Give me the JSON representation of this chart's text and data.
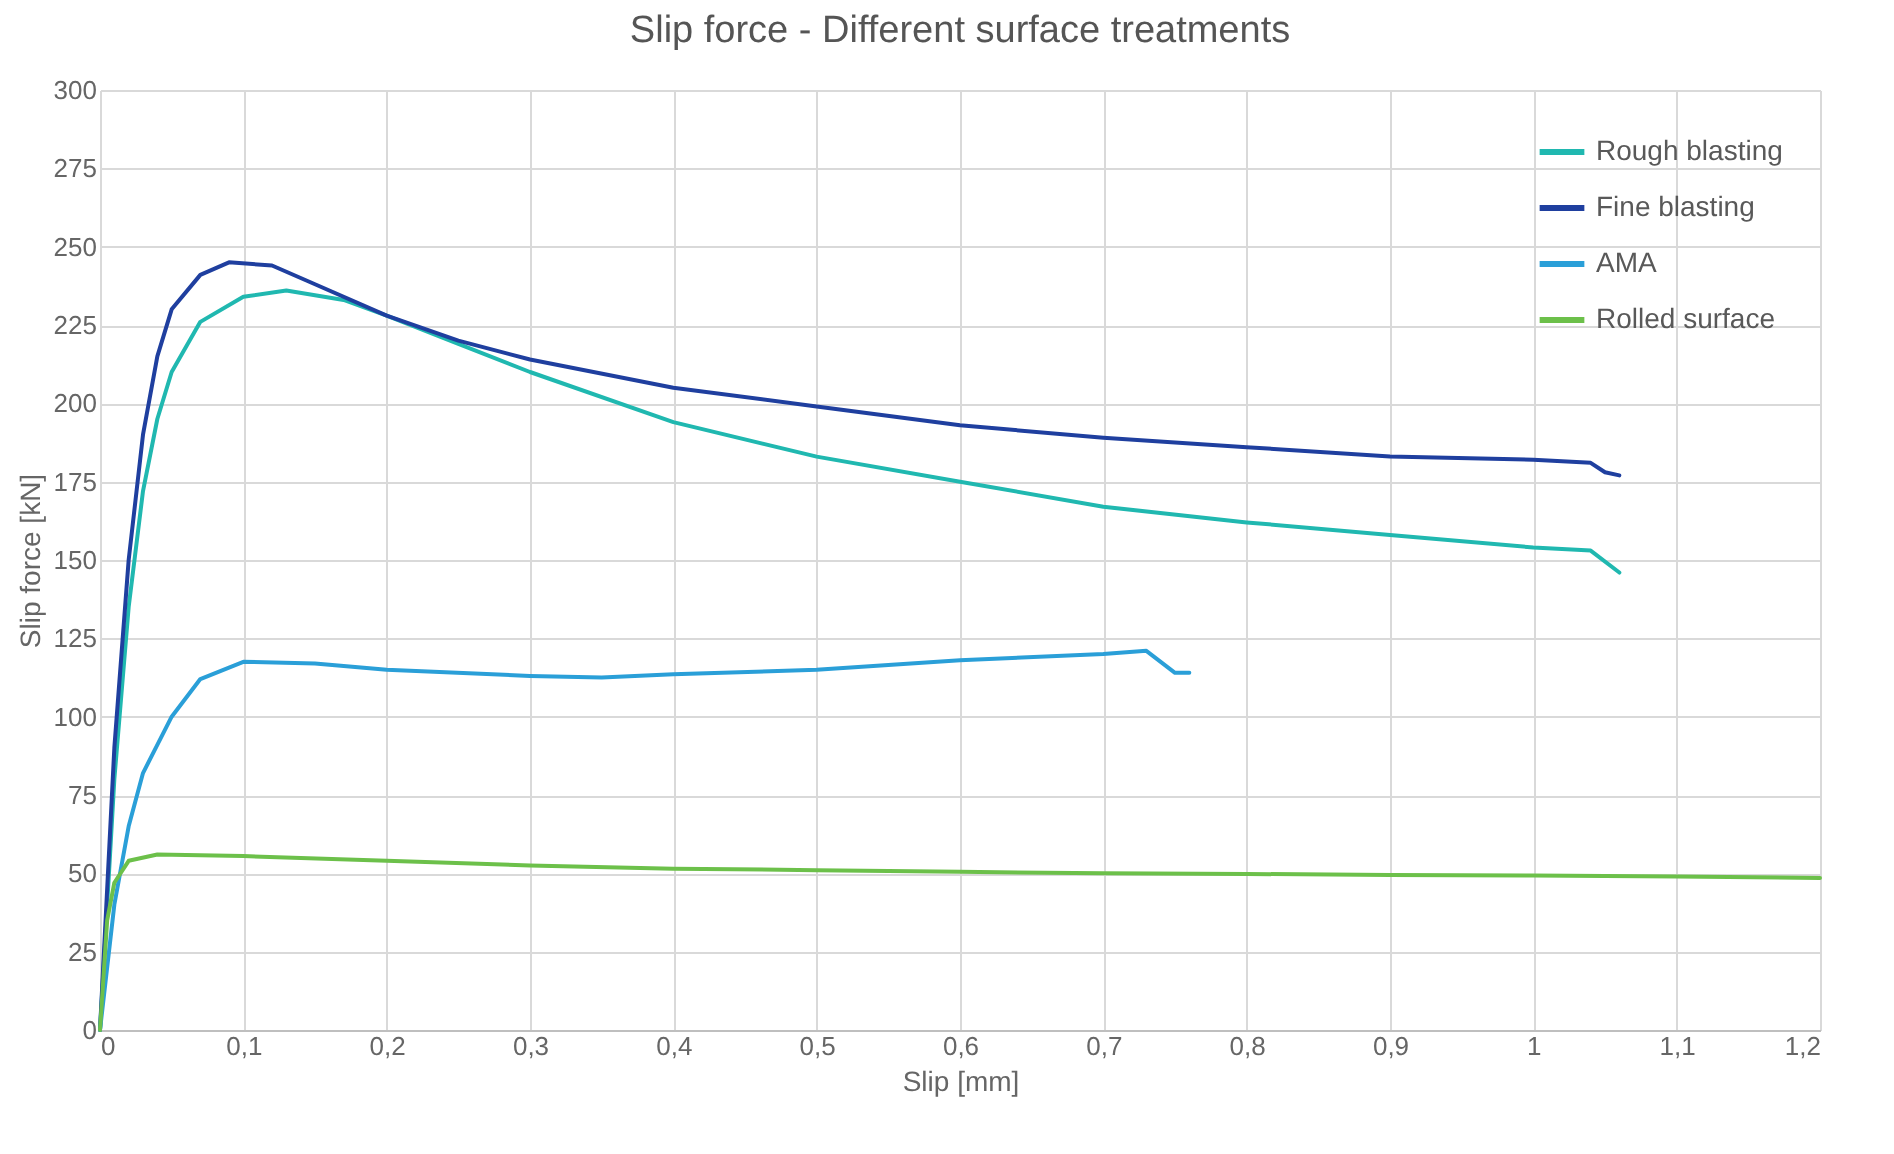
{
  "chart_data": {
    "type": "line",
    "title": "Slip force - Different surface treatments",
    "xlabel": "Slip [mm]",
    "ylabel": "Slip force [kN]",
    "xlim": [
      0,
      1.2
    ],
    "xticks": [
      0,
      {
        "value": 0.1,
        "label": "0,1"
      },
      {
        "value": 0.2,
        "label": "0,2"
      },
      {
        "value": 0.3,
        "label": "0,3"
      },
      {
        "value": 0.4,
        "label": "0,4"
      },
      {
        "value": 0.5,
        "label": "0,5"
      },
      {
        "value": 0.6,
        "label": "0,6"
      },
      {
        "value": 0.7,
        "label": "0,7"
      },
      {
        "value": 0.8,
        "label": "0,8"
      },
      {
        "value": 0.9,
        "label": "0,9"
      },
      1,
      {
        "value": 1.1,
        "label": "1,1"
      },
      {
        "value": 1.2,
        "label": "1,2"
      }
    ],
    "ylim": [
      0,
      300
    ],
    "yticks": [
      0,
      25,
      50,
      75,
      100,
      125,
      150,
      175,
      200,
      225,
      250,
      275,
      300
    ],
    "grid": true,
    "legend": "top right",
    "marker": "none",
    "line_style": "solid",
    "series": [
      {
        "name": "Rough blasting",
        "color": "#20b8b0",
        "x": [
          0,
          0.01,
          0.02,
          0.03,
          0.04,
          0.05,
          0.07,
          0.1,
          0.13,
          0.17,
          0.2,
          0.25,
          0.3,
          0.4,
          0.5,
          0.6,
          0.7,
          0.8,
          0.9,
          1.0,
          1.04,
          1.06
        ],
        "values": [
          0,
          80,
          135,
          172,
          195,
          210,
          226,
          234,
          236,
          233,
          228,
          219,
          210,
          194,
          183,
          175,
          167,
          162,
          158,
          154,
          153,
          146
        ]
      },
      {
        "name": "Fine blasting",
        "color": "#1f3f9f",
        "x": [
          0,
          0.01,
          0.02,
          0.03,
          0.04,
          0.05,
          0.07,
          0.09,
          0.12,
          0.15,
          0.2,
          0.25,
          0.3,
          0.4,
          0.5,
          0.6,
          0.7,
          0.8,
          0.9,
          1.0,
          1.04,
          1.05,
          1.06
        ],
        "values": [
          0,
          90,
          150,
          190,
          215,
          230,
          241,
          245,
          244,
          238,
          228,
          220,
          214,
          205,
          199,
          193,
          189,
          186,
          183,
          182,
          181,
          178,
          177
        ]
      },
      {
        "name": "AMA",
        "color": "#2a9fd8",
        "x": [
          0,
          0.01,
          0.02,
          0.03,
          0.05,
          0.07,
          0.1,
          0.15,
          0.2,
          0.3,
          0.35,
          0.4,
          0.5,
          0.6,
          0.7,
          0.73,
          0.75,
          0.76
        ],
        "values": [
          0,
          40,
          65,
          82,
          100,
          112,
          117.5,
          117,
          115,
          113,
          112.5,
          113.5,
          115,
          118,
          120,
          121,
          114,
          114
        ]
      },
      {
        "name": "Rolled surface",
        "color": "#6cc04a",
        "x": [
          0,
          0.005,
          0.01,
          0.02,
          0.04,
          0.1,
          0.2,
          0.3,
          0.4,
          0.5,
          0.6,
          0.7,
          0.8,
          0.9,
          1.0,
          1.1,
          1.2
        ],
        "values": [
          0,
          35,
          47,
          54,
          56,
          55.5,
          54,
          52.5,
          51.5,
          51,
          50.5,
          50,
          49.8,
          49.5,
          49.3,
          49,
          48.5
        ]
      }
    ]
  }
}
